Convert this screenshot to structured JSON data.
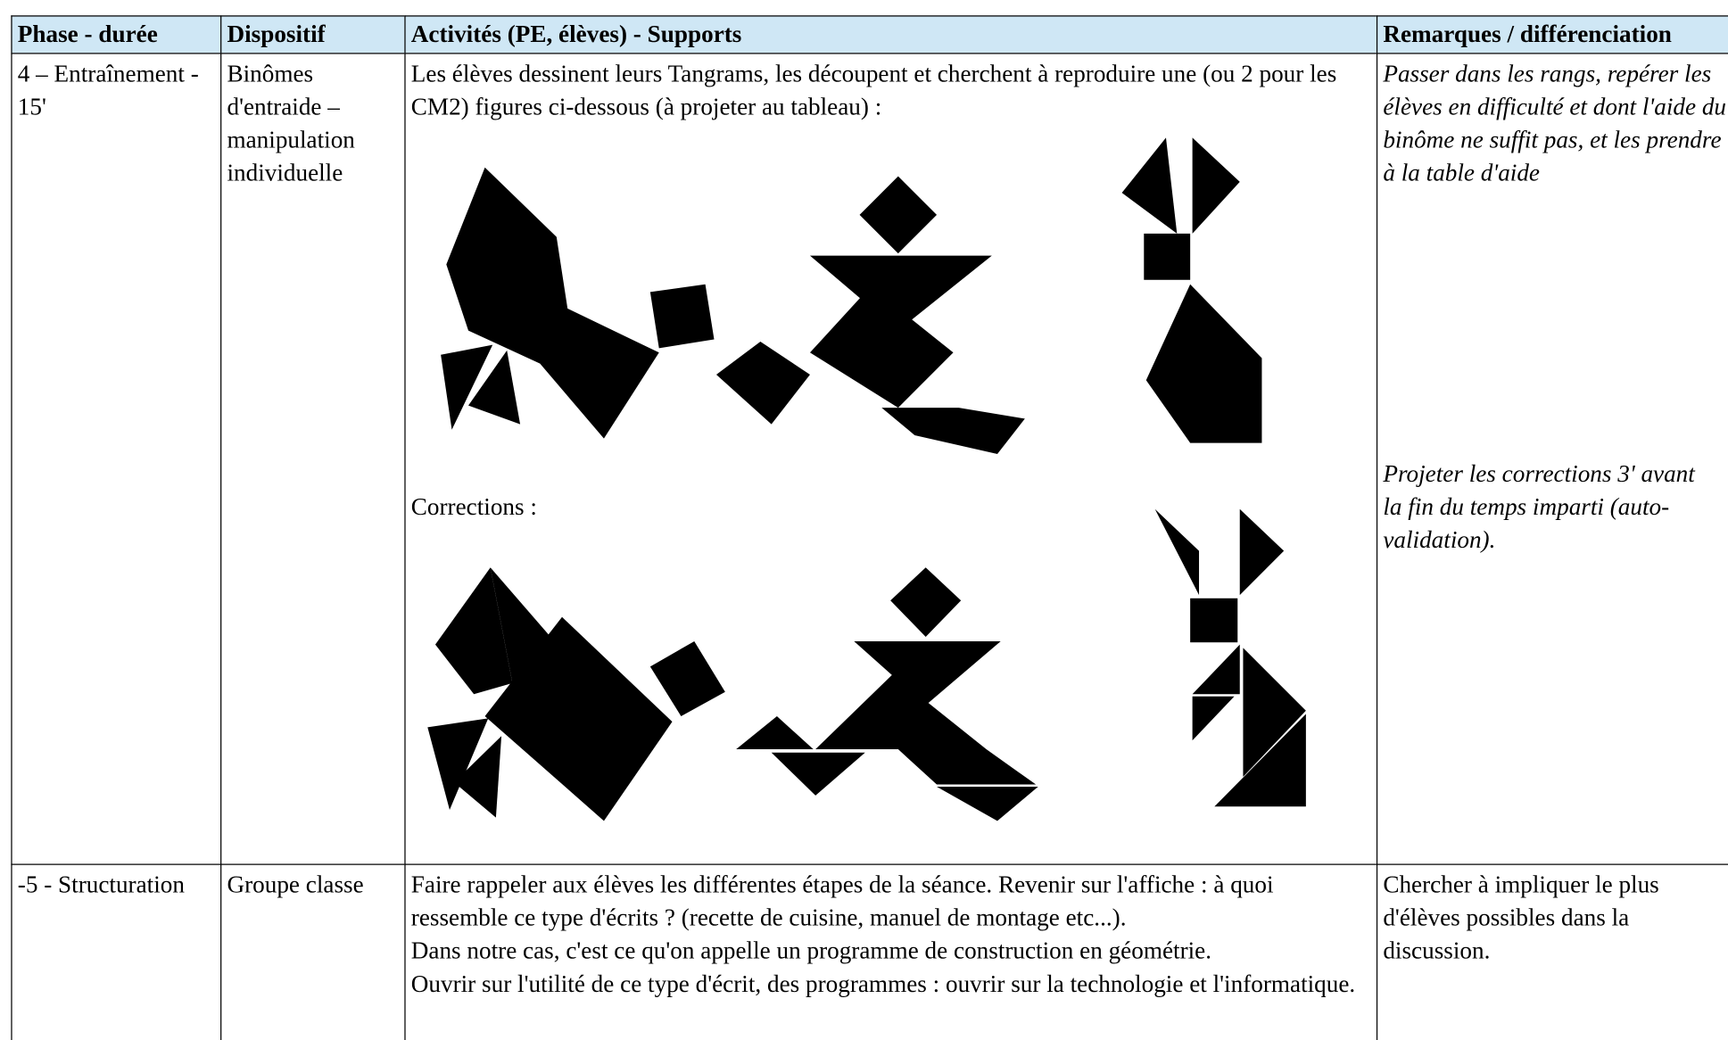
{
  "table": {
    "header": [
      "Phase - durée",
      "Dispositif",
      "Activités (PE, élèves) - Supports",
      "Remarques / différenciation"
    ],
    "rows": [
      [
        "4 – Entraînement - 15'",
        "Binômes d'entraide – manipulation individuelle",
        [
          "Les élèves dessinent leurs Tangrams, les découpent et cherchent à reproduire une (ou 2 pour les CM2) figures ci-dessous (à projeter au tableau) :",
          "Corrections :"
        ],
        [
          "Passer dans les rangs, repérer les élèves en difficulté et dont l'aide du binôme ne suffit pas, et les prendre à la table d'aide",
          "Projeter les corrections 3' avant la fin du temps imparti (auto-validation)."
        ]
      ],
      [
        "-5 - Structuration",
        "Groupe classe",
        [
          "Faire rappeler aux élèves les différentes étapes de la séance. Revenir sur l'affiche : à quoi ressemble ce type d'écrits ? (recette de cuisine, manuel de montage etc...).",
          "Dans notre cas, c'est ce qu'on appelle un programme de construction en géométrie.",
          "Ouvrir sur l'utilité de ce type d'écrit, des programmes : ouvrir sur la technologie et l'informatique."
        ],
        "Chercher à impliquer le plus d'élèves possibles dans la discussion."
      ]
    ]
  }
}
